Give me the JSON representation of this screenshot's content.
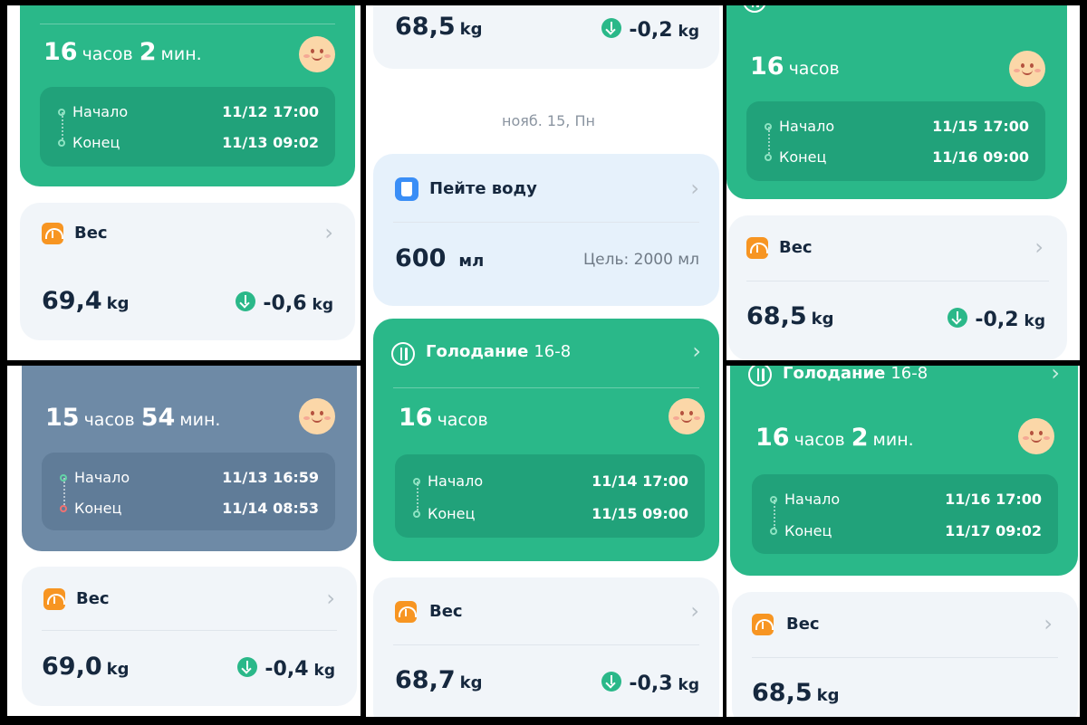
{
  "panel1": {
    "fast": {
      "hours": "16",
      "hours_unit": "часов",
      "mins": "2",
      "mins_unit": "мин.",
      "start_label": "Начало",
      "start_time": "11/12 17:00",
      "end_label": "Конец",
      "end_time": "11/13 09:02"
    },
    "weight": {
      "title": "Вес",
      "value": "69,4",
      "unit": "kg",
      "delta": "-0,6",
      "delta_unit": "kg"
    }
  },
  "panel2": {
    "fast": {
      "hours": "15",
      "hours_unit": "часов",
      "mins": "54",
      "mins_unit": "мин.",
      "start_label": "Начало",
      "start_time": "11/13 16:59",
      "end_label": "Конец",
      "end_time": "11/14 08:53"
    },
    "weight": {
      "title": "Вес",
      "value": "69,0",
      "unit": "kg",
      "delta": "-0,4",
      "delta_unit": "kg"
    }
  },
  "panel3": {
    "top_weight": {
      "value": "68,5",
      "unit": "kg",
      "delta": "-0,2",
      "delta_unit": "kg"
    },
    "date": "нояб. 15, Пн",
    "water": {
      "title": "Пейте воду",
      "value": "600",
      "unit": "мл",
      "goal": "Цель: 2000 мл"
    },
    "fast": {
      "title": "Голодание",
      "plan": "16-8",
      "hours": "16",
      "hours_unit": "часов",
      "start_label": "Начало",
      "start_time": "11/14 17:00",
      "end_label": "Конец",
      "end_time": "11/15 09:00"
    },
    "weight": {
      "title": "Вес",
      "value": "68,7",
      "unit": "kg",
      "delta": "-0,3",
      "delta_unit": "kg"
    }
  },
  "panel4": {
    "fast": {
      "hours": "16",
      "hours_unit": "часов",
      "start_label": "Начало",
      "start_time": "11/15 17:00",
      "end_label": "Конец",
      "end_time": "11/16 09:00"
    },
    "weight": {
      "title": "Вес",
      "value": "68,5",
      "unit": "kg",
      "delta": "-0,2",
      "delta_unit": "kg"
    }
  },
  "panel5": {
    "fast": {
      "title": "Голодание",
      "plan": "16-8",
      "hours": "16",
      "hours_unit": "часов",
      "mins": "2",
      "mins_unit": "мин.",
      "start_label": "Начало",
      "start_time": "11/16 17:00",
      "end_label": "Конец",
      "end_time": "11/17 09:02"
    },
    "weight": {
      "title": "Вес",
      "value": "68,5",
      "unit": "kg"
    }
  },
  "chevron": "›",
  "colors": {
    "fasting_green": "#2ab889",
    "fasting_slate": "#6e8aa6",
    "weight_orange": "#f79522",
    "water_blue": "#3a8ef6"
  }
}
